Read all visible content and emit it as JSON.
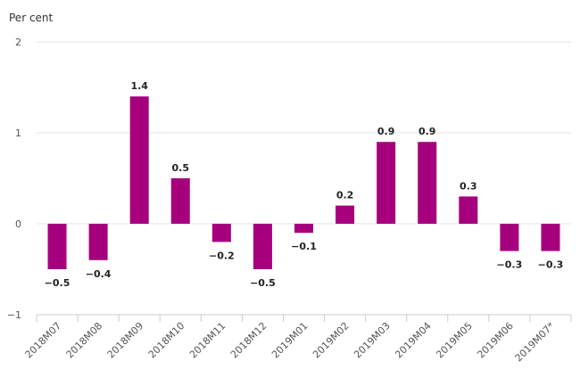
{
  "chart_data": {
    "type": "bar",
    "ylabel": "Per cent",
    "categories": [
      "2018M07",
      "2018M08",
      "2018M09",
      "2018M10",
      "2018M11",
      "2018M12",
      "2019M01",
      "2019M02",
      "2019M03",
      "2019M04",
      "2019M05",
      "2019M06",
      "2019M07*"
    ],
    "values": [
      -0.5,
      -0.4,
      1.4,
      0.5,
      -0.2,
      -0.5,
      -0.1,
      0.2,
      0.9,
      0.9,
      0.3,
      -0.3,
      -0.3
    ],
    "value_labels": [
      "−0.5",
      "−0.4",
      "1.4",
      "0.5",
      "−0.2",
      "−0.5",
      "−0.1",
      "0.2",
      "0.9",
      "0.9",
      "0.3",
      "−0.3",
      "−0.3"
    ],
    "y_ticks": [
      {
        "value": 2,
        "label": "2"
      },
      {
        "value": 1,
        "label": "1"
      },
      {
        "value": 0,
        "label": "0"
      },
      {
        "value": -1,
        "label": "−1"
      }
    ],
    "ylim": [
      -1,
      2
    ],
    "grid": true,
    "bar_color": "#a6007e",
    "grid_color": "#e3e3e3"
  }
}
